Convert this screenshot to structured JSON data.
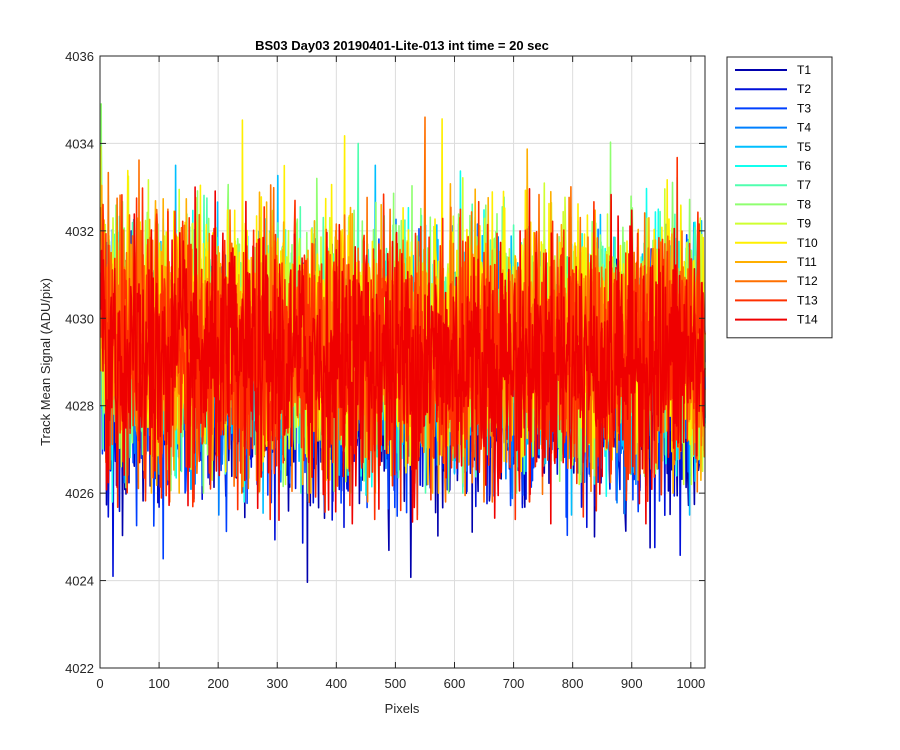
{
  "chart_data": {
    "type": "line",
    "title": "BS03 Day03 20190401-Lite-013 int time = 20 sec",
    "xlabel": "Pixels",
    "ylabel": "Track Mean Signal (ADU/pix)",
    "xlim": [
      0,
      1024
    ],
    "ylim": [
      4022,
      4036
    ],
    "xticks": [
      0,
      100,
      200,
      300,
      400,
      500,
      600,
      700,
      800,
      900,
      1000
    ],
    "yticks": [
      4022,
      4024,
      4026,
      4028,
      4030,
      4032,
      4034,
      4036
    ],
    "grid": true,
    "legend_position": "outside-right-top",
    "series": [
      {
        "name": "T1",
        "color": "#0000ad",
        "mean": 4028.3,
        "min": 4023.8,
        "max": 4031.9
      },
      {
        "name": "T2",
        "color": "#0010d9",
        "mean": 4028.4,
        "min": 4024.1,
        "max": 4032.0
      },
      {
        "name": "T3",
        "color": "#0040ff",
        "mean": 4028.6,
        "min": 4024.5,
        "max": 4032.2
      },
      {
        "name": "T4",
        "color": "#0080ff",
        "mean": 4029.0,
        "min": 4025.5,
        "max": 4033.0
      },
      {
        "name": "T5",
        "color": "#00bfff",
        "mean": 4029.2,
        "min": 4025.5,
        "max": 4033.5
      },
      {
        "name": "T6",
        "color": "#10ffef",
        "mean": 4029.3,
        "min": 4025.8,
        "max": 4033.8
      },
      {
        "name": "T7",
        "color": "#50ffaf",
        "mean": 4029.4,
        "min": 4026.0,
        "max": 4034.0
      },
      {
        "name": "T8",
        "color": "#8fff70",
        "mean": 4029.5,
        "min": 4026.0,
        "max": 4035.7
      },
      {
        "name": "T9",
        "color": "#cfff30",
        "mean": 4029.6,
        "min": 4026.2,
        "max": 4034.5
      },
      {
        "name": "T10",
        "color": "#ffef00",
        "mean": 4029.6,
        "min": 4026.3,
        "max": 4035.3
      },
      {
        "name": "T11",
        "color": "#ffaf00",
        "mean": 4029.4,
        "min": 4026.0,
        "max": 4034.8
      },
      {
        "name": "T12",
        "color": "#ff7000",
        "mean": 4029.3,
        "min": 4025.8,
        "max": 4034.6
      },
      {
        "name": "T13",
        "color": "#ff3000",
        "mean": 4029.1,
        "min": 4025.4,
        "max": 4035.2
      },
      {
        "name": "T14",
        "color": "#ef0000",
        "mean": 4029.0,
        "min": 4025.3,
        "max": 4034.4
      }
    ]
  }
}
